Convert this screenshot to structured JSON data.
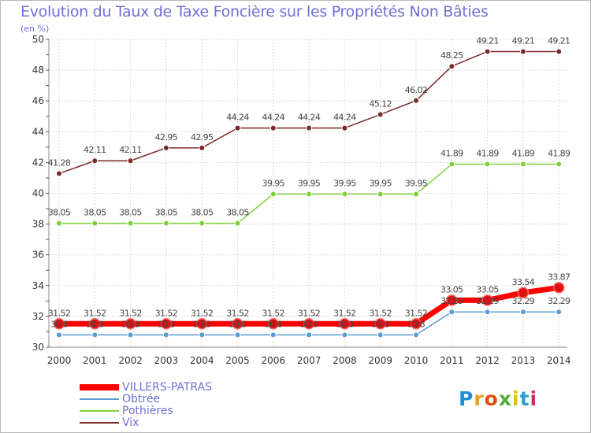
{
  "chart_data": {
    "type": "line",
    "title": "Evolution du Taux de Taxe Foncière sur les Propriétés Non Bâties",
    "unit_label": "(en %)",
    "x": [
      "2000",
      "2001",
      "2002",
      "2003",
      "2004",
      "2005",
      "2006",
      "2007",
      "2008",
      "2009",
      "2010",
      "2011",
      "2012",
      "2013",
      "2014"
    ],
    "ylim": [
      30,
      50
    ],
    "yticks": [
      "30",
      "32",
      "34",
      "36",
      "38",
      "40",
      "42",
      "44",
      "46",
      "48",
      "50"
    ],
    "grid": true,
    "legend_position": "bottom-left",
    "series": [
      {
        "name": "VILLERS-PATRAS",
        "color": "#ff0000",
        "values": [
          31.52,
          31.52,
          31.52,
          31.52,
          31.52,
          31.52,
          31.52,
          31.52,
          31.52,
          31.52,
          31.52,
          33.05,
          33.05,
          33.54,
          33.87
        ],
        "labels": [
          "31.52",
          "31.52",
          "31.52",
          "31.52",
          "31.52",
          "31.52",
          "31.52",
          "31.52",
          "31.52",
          "31.52",
          "31.52",
          "33.05",
          "33.05",
          "33.54",
          "33.87"
        ]
      },
      {
        "name": "Obtrée",
        "color": "#5b9bd5",
        "values": [
          30.8,
          30.8,
          30.8,
          30.8,
          30.8,
          30.8,
          30.8,
          30.8,
          30.8,
          30.8,
          30.8,
          32.29,
          32.29,
          32.29,
          32.29
        ],
        "labels": [
          "30.8",
          "30.8",
          "30.8",
          "30.8",
          "30.8",
          "30.8",
          "30.8",
          "30.8",
          "30.8",
          "30.8",
          "30.8",
          "32.29",
          "32.29",
          "32.29",
          "32.29"
        ]
      },
      {
        "name": "Pothières",
        "color": "#7fd13b",
        "values": [
          38.05,
          38.05,
          38.05,
          38.05,
          38.05,
          38.05,
          39.95,
          39.95,
          39.95,
          39.95,
          39.95,
          41.89,
          41.89,
          41.89,
          41.89
        ],
        "labels": [
          "38.05",
          "38.05",
          "38.05",
          "38.05",
          "38.05",
          "38.05",
          "39.95",
          "39.95",
          "39.95",
          "39.95",
          "39.95",
          "41.89",
          "41.89",
          "41.89",
          "41.89"
        ]
      },
      {
        "name": "Vix",
        "color": "#7a2a2a",
        "values": [
          41.28,
          42.11,
          42.11,
          42.95,
          42.95,
          44.24,
          44.24,
          44.24,
          44.24,
          45.12,
          46.02,
          48.25,
          49.21,
          49.21,
          49.21
        ],
        "labels": [
          "41.28",
          "42.11",
          "42.11",
          "42.95",
          "42.95",
          "44.24",
          "44.24",
          "44.24",
          "44.24",
          "45.12",
          "46.02",
          "48.25",
          "49.21",
          "49.21",
          "49.21"
        ]
      }
    ]
  },
  "logo": {
    "letters": [
      "P",
      "r",
      "o",
      "x",
      "i",
      "t",
      "i"
    ],
    "colors": [
      "#1e8fd0",
      "#e8a020",
      "#e05010",
      "#50b030",
      "#e0c010",
      "#30a0d0",
      "#d03060"
    ]
  }
}
